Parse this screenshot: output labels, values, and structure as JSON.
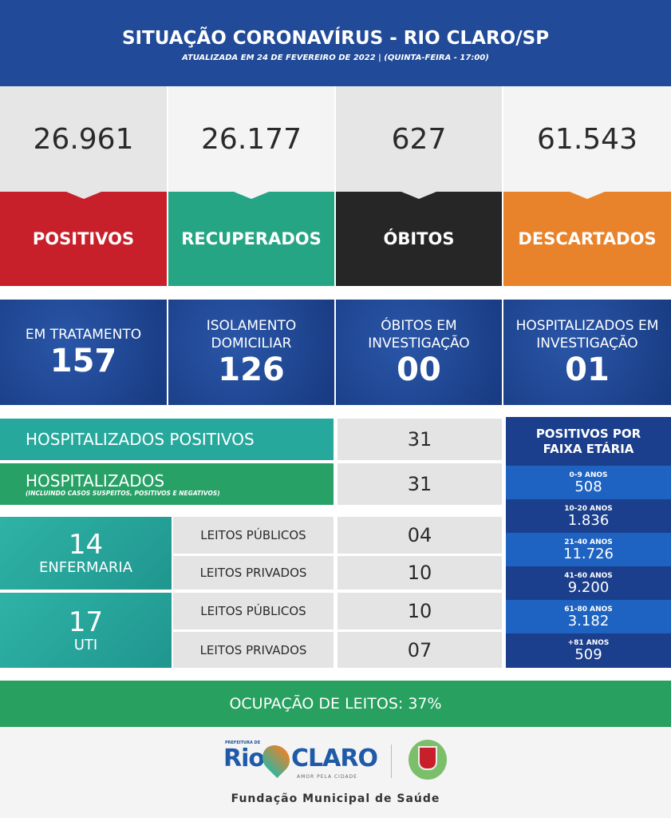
{
  "header": {
    "title": "SITUAÇÃO CORONAVÍRUS - RIO CLARO/SP",
    "subtitle": "ATUALIZADA EM 24 DE FEVEREIRO DE 2022 | (QUINTA-FEIRA - 17:00)"
  },
  "stats": [
    {
      "value": "26.961",
      "label": "POSITIVOS",
      "color": "#c8202a"
    },
    {
      "value": "26.177",
      "label": "RECUPERADOS",
      "color": "#26a584"
    },
    {
      "value": "627",
      "label": "ÓBITOS",
      "color": "#262626"
    },
    {
      "value": "61.543",
      "label": "DESCARTADOS",
      "color": "#e8832b"
    }
  ],
  "secondary": [
    {
      "label": "EM TRATAMENTO",
      "value": "157"
    },
    {
      "label": "ISOLAMENTO DOMICILIAR",
      "value": "126"
    },
    {
      "label": "ÓBITOS EM INVESTIGAÇÃO",
      "value": "00"
    },
    {
      "label": "HOSPITALIZADOS EM INVESTIGAÇÃO",
      "value": "01"
    }
  ],
  "hospital": {
    "positivos": {
      "label": "HOSPITALIZADOS POSITIVOS",
      "value": "31"
    },
    "total": {
      "label": "HOSPITALIZADOS",
      "note": "(INCLUINDO CASOS SUSPEITOS, POSITIVOS E NEGATIVOS)",
      "value": "31"
    },
    "enfermaria": {
      "value": "14",
      "label": "ENFERMARIA",
      "publicos_label": "LEITOS PÚBLICOS",
      "publicos": "04",
      "privados_label": "LEITOS PRIVADOS",
      "privados": "10"
    },
    "uti": {
      "value": "17",
      "label": "UTI",
      "publicos_label": "LEITOS PÚBLICOS",
      "publicos": "10",
      "privados_label": "LEITOS PRIVADOS",
      "privados": "07"
    }
  },
  "faixa": {
    "title": "POSITIVOS POR FAIXA ETÁRIA",
    "rows": [
      {
        "range": "0-9 ANOS",
        "value": "508"
      },
      {
        "range": "10-20 ANOS",
        "value": "1.836"
      },
      {
        "range": "21-40 ANOS",
        "value": "11.726"
      },
      {
        "range": "41-60 ANOS",
        "value": "9.200"
      },
      {
        "range": "61-80 ANOS",
        "value": "3.182"
      },
      {
        "range": "+81 ANOS",
        "value": "509"
      }
    ]
  },
  "ocupacao": "OCUPAÇÃO DE LEITOS: 37%",
  "footer": {
    "logo_prefix": "PREFEITURA DE",
    "logo_rio": "Rio",
    "logo_claro": "CLARO",
    "logo_tagline": "AMOR PELA CIDADE",
    "org": "Fundação Municipal de Saúde"
  }
}
